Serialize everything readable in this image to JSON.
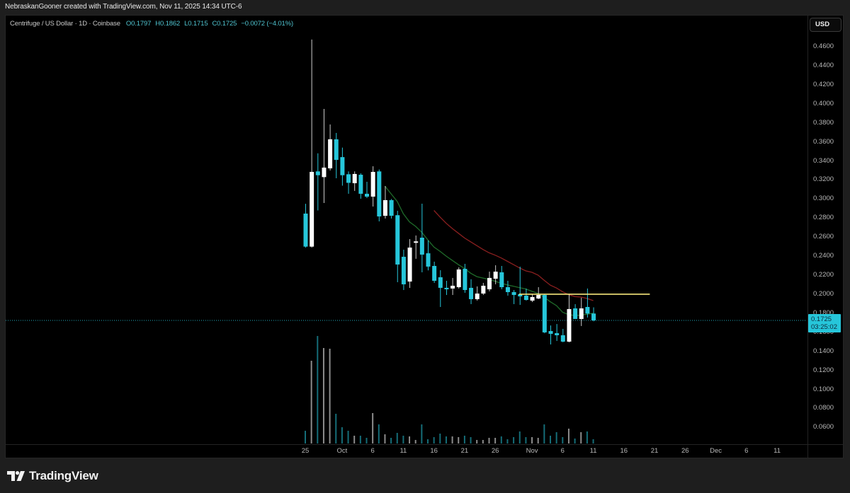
{
  "topbar": {
    "text": "NebraskanGooner created with TradingView.com, Nov 11, 2025 14:34 UTC-6"
  },
  "legend": {
    "symbol": "Centrifuge / US Dollar · 1D · Coinbase",
    "open": "O0.1797",
    "high": "H0.1862",
    "low": "L0.1715",
    "close": "C0.1725",
    "change": "−0.0072 (−4.01%)"
  },
  "currency_button": {
    "label": "USD"
  },
  "price_tag": {
    "price": "0.1725",
    "countdown": "03:25:02"
  },
  "footer": {
    "brand": "TradingView",
    "logo_icon": "tradingview-logo-icon"
  },
  "colors": {
    "up": "#ffffff",
    "down": "#26c6da",
    "up_volume": "rgba(255,255,255,0.55)",
    "down_volume": "rgba(38,198,218,0.55)",
    "short_ma": "#1f6b2a",
    "long_ma": "#8b1f1f",
    "hline": "#f5e67a",
    "price_line": "#26c6da"
  },
  "chart_data": {
    "type": "candlestick",
    "title": "Centrifuge / US Dollar · 1D · Coinbase",
    "interval": "1D",
    "x": [
      "Sep 25",
      "Sep 26",
      "Sep 27",
      "Sep 28",
      "Sep 29",
      "Sep 30",
      "Oct 1",
      "Oct 2",
      "Oct 3",
      "Oct 4",
      "Oct 5",
      "Oct 6",
      "Oct 7",
      "Oct 8",
      "Oct 9",
      "Oct 10",
      "Oct 11",
      "Oct 12",
      "Oct 13",
      "Oct 14",
      "Oct 15",
      "Oct 16",
      "Oct 17",
      "Oct 18",
      "Oct 19",
      "Oct 20",
      "Oct 21",
      "Oct 22",
      "Oct 23",
      "Oct 24",
      "Oct 25",
      "Oct 26",
      "Oct 27",
      "Oct 28",
      "Oct 29",
      "Oct 30",
      "Oct 31",
      "Nov 1",
      "Nov 2",
      "Nov 3",
      "Nov 4",
      "Nov 5",
      "Nov 6",
      "Nov 7",
      "Nov 8",
      "Nov 9",
      "Nov 10",
      "Nov 11"
    ],
    "open": [
      0.2847,
      0.25,
      0.329,
      0.323,
      0.3322,
      0.3627,
      0.344,
      0.326,
      0.3166,
      0.3255,
      0.3055,
      0.3025,
      0.329,
      0.2824,
      0.2988,
      0.283,
      0.2393,
      0.2133,
      0.254,
      0.2594,
      0.243,
      0.2297,
      0.2178,
      0.2067,
      0.206,
      0.2074,
      0.2267,
      0.2067,
      0.1948,
      0.2007,
      0.2052,
      0.2163,
      0.223,
      0.2074,
      0.2022,
      0.2,
      0.1985,
      0.1933,
      0.1955,
      0.1992,
      0.1613,
      0.1591,
      0.1569,
      0.1502,
      0.1851,
      0.174,
      0.1866,
      0.1797
    ],
    "high": [
      0.295,
      0.4675,
      0.348,
      0.3946,
      0.3783,
      0.3694,
      0.354,
      0.329,
      0.329,
      0.327,
      0.3181,
      0.3344,
      0.331,
      0.3136,
      0.3,
      0.2876,
      0.2468,
      0.2579,
      0.2617,
      0.2951,
      0.2565,
      0.2342,
      0.2252,
      0.2141,
      0.2171,
      0.2282,
      0.2319,
      0.2157,
      0.2082,
      0.2119,
      0.2237,
      0.2304,
      0.2297,
      0.2141,
      0.2044,
      0.2289,
      0.2059,
      0.2,
      0.2074,
      0.2,
      0.1672,
      0.1687,
      0.1636,
      0.2,
      0.1896,
      0.1963,
      0.206,
      0.1862
    ],
    "low": [
      0.249,
      0.249,
      0.288,
      0.2958,
      0.33,
      0.3218,
      0.314,
      0.3055,
      0.3085,
      0.3003,
      0.301,
      0.2921,
      0.2765,
      0.2795,
      0.2795,
      0.2126,
      0.2044,
      0.2066,
      0.2372,
      0.223,
      0.225,
      0.2119,
      0.1866,
      0.1992,
      0.1992,
      0.2059,
      0.2015,
      0.1896,
      0.1933,
      0.1992,
      0.203,
      0.2104,
      0.2052,
      0.1985,
      0.1896,
      0.1888,
      0.1933,
      0.1918,
      0.1948,
      0.159,
      0.1472,
      0.1509,
      0.1495,
      0.1495,
      0.174,
      0.1666,
      0.1755,
      0.1715
    ],
    "close": [
      0.25,
      0.3285,
      0.325,
      0.333,
      0.3627,
      0.3411,
      0.325,
      0.317,
      0.3263,
      0.3055,
      0.3025,
      0.3285,
      0.2817,
      0.2988,
      0.2824,
      0.2312,
      0.2104,
      0.249,
      0.2555,
      0.2416,
      0.229,
      0.2141,
      0.2067,
      0.2052,
      0.2089,
      0.226,
      0.2044,
      0.1948,
      0.2007,
      0.2089,
      0.2171,
      0.2237,
      0.2074,
      0.2022,
      0.1992,
      0.1977,
      0.194,
      0.197,
      0.1992,
      0.1599,
      0.1584,
      0.1569,
      0.1502,
      0.1844,
      0.174,
      0.1851,
      0.1797,
      0.1725
    ],
    "volume": [
      18,
      117,
      152,
      135,
      134,
      42,
      23,
      18,
      11,
      11,
      8,
      43,
      27,
      13,
      8,
      15,
      11,
      10,
      5,
      27,
      6,
      9,
      14,
      10,
      10,
      9,
      11,
      9,
      5,
      5,
      8,
      8,
      10,
      6,
      9,
      17,
      9,
      9,
      8,
      27,
      11,
      16,
      9,
      21,
      7,
      16,
      17,
      6
    ],
    "series": [
      {
        "name": "short moving average",
        "color_key": "short_ma",
        "start_index": 13,
        "values": [
          0.3136,
          0.3055,
          0.2975,
          0.2845,
          0.276,
          0.2713,
          0.2651,
          0.257,
          0.2495,
          0.245,
          0.24,
          0.2355,
          0.231,
          0.227,
          0.222,
          0.2185,
          0.217,
          0.2155,
          0.2135,
          0.2115,
          0.2097,
          0.2083,
          0.2069,
          0.2055,
          0.203,
          0.2007,
          0.1968,
          0.192,
          0.188,
          0.181,
          0.1785,
          0.1777,
          0.178,
          0.179,
          0.18
        ]
      },
      {
        "name": "long moving average",
        "color_key": "long_ma",
        "start_index": 21,
        "values": [
          0.288,
          0.281,
          0.2745,
          0.269,
          0.264,
          0.259,
          0.255,
          0.251,
          0.247,
          0.2435,
          0.241,
          0.238,
          0.2345,
          0.231,
          0.2275,
          0.2245,
          0.223,
          0.22,
          0.2145,
          0.2095,
          0.2065,
          0.2025,
          0.1995,
          0.1975,
          0.197,
          0.1955,
          0.1933
        ]
      }
    ],
    "hlines": [
      {
        "price": 0.2,
        "from_index": 35,
        "to_index": 56
      }
    ],
    "last_price": 0.1725,
    "ylim": [
      0.06,
      0.46
    ],
    "y_ticks": [
      "0.4600",
      "0.4400",
      "0.4200",
      "0.4000",
      "0.3800",
      "0.3600",
      "0.3400",
      "0.3200",
      "0.3000",
      "0.2800",
      "0.2600",
      "0.2400",
      "0.2200",
      "0.2000",
      "0.1800",
      "0.1600",
      "0.1400",
      "0.1200",
      "0.1000",
      "0.0800",
      "0.0600"
    ],
    "x_ticks": [
      {
        "label": "25",
        "index": 0
      },
      {
        "label": "Oct",
        "index": 6
      },
      {
        "label": "6",
        "index": 11
      },
      {
        "label": "11",
        "index": 16
      },
      {
        "label": "16",
        "index": 21
      },
      {
        "label": "21",
        "index": 26
      },
      {
        "label": "26",
        "index": 31
      },
      {
        "label": "Nov",
        "index": 37
      },
      {
        "label": "6",
        "index": 42
      },
      {
        "label": "11",
        "index": 47
      },
      {
        "label": "16",
        "index": 52
      },
      {
        "label": "21",
        "index": 57
      },
      {
        "label": "26",
        "index": 62
      },
      {
        "label": "Dec",
        "index": 67
      },
      {
        "label": "6",
        "index": 72
      },
      {
        "label": "11",
        "index": 77
      }
    ],
    "xlabel": "",
    "ylabel": "USD",
    "grid": false
  }
}
